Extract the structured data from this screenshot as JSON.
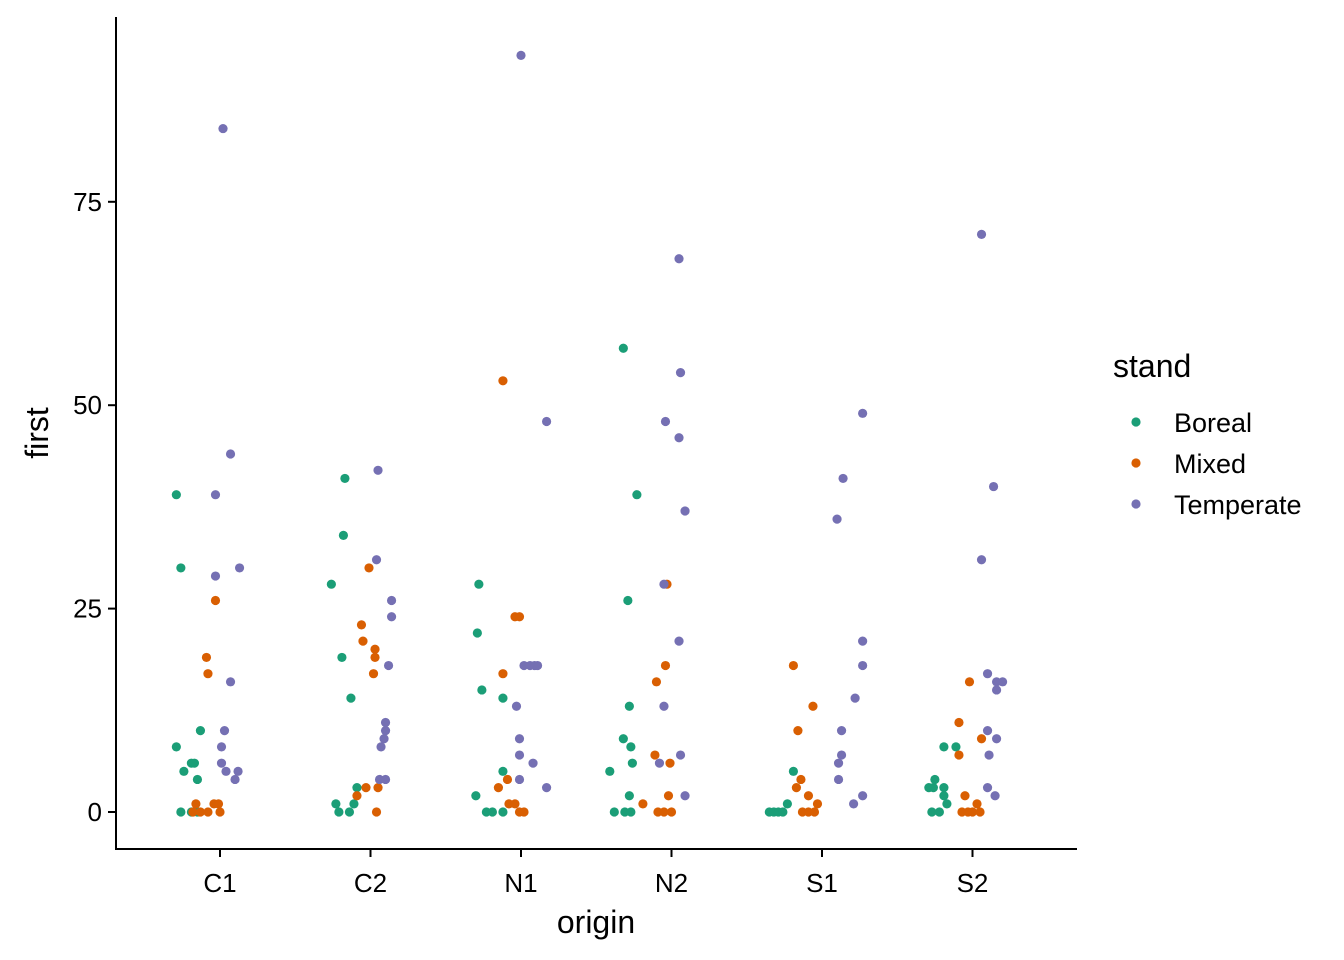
{
  "chart_data": {
    "type": "scatter",
    "title": "",
    "xlabel": "origin",
    "ylabel": "first",
    "categories": [
      "C1",
      "C2",
      "N1",
      "N2",
      "S1",
      "S2"
    ],
    "ylim": [
      -4.5,
      94.5
    ],
    "yticks": [
      0,
      25,
      50,
      75
    ],
    "grid": false,
    "legend": {
      "title": "stand",
      "position": "right"
    },
    "series": [
      {
        "name": "Boreal",
        "color": "#1b9e77",
        "points": [
          {
            "x": "C1",
            "jitter": -0.29,
            "y": 39
          },
          {
            "x": "C1",
            "jitter": -0.26,
            "y": 30
          },
          {
            "x": "C1",
            "jitter": -0.13,
            "y": 10
          },
          {
            "x": "C1",
            "jitter": -0.29,
            "y": 8
          },
          {
            "x": "C1",
            "jitter": -0.19,
            "y": 6
          },
          {
            "x": "C1",
            "jitter": -0.17,
            "y": 6
          },
          {
            "x": "C1",
            "jitter": -0.24,
            "y": 5
          },
          {
            "x": "C1",
            "jitter": -0.15,
            "y": 4
          },
          {
            "x": "C1",
            "jitter": -0.26,
            "y": 0
          },
          {
            "x": "C1",
            "jitter": -0.19,
            "y": 0
          },
          {
            "x": "C1",
            "jitter": -0.15,
            "y": 0
          },
          {
            "x": "C2",
            "jitter": -0.17,
            "y": 41
          },
          {
            "x": "C2",
            "jitter": -0.18,
            "y": 34
          },
          {
            "x": "C2",
            "jitter": -0.26,
            "y": 28
          },
          {
            "x": "C2",
            "jitter": -0.19,
            "y": 19
          },
          {
            "x": "C2",
            "jitter": -0.13,
            "y": 14
          },
          {
            "x": "C2",
            "jitter": -0.09,
            "y": 3
          },
          {
            "x": "C2",
            "jitter": -0.23,
            "y": 1
          },
          {
            "x": "C2",
            "jitter": -0.11,
            "y": 1
          },
          {
            "x": "C2",
            "jitter": -0.21,
            "y": 0
          },
          {
            "x": "C2",
            "jitter": -0.14,
            "y": 0
          },
          {
            "x": "N1",
            "jitter": -0.28,
            "y": 28
          },
          {
            "x": "N1",
            "jitter": -0.29,
            "y": 22
          },
          {
            "x": "N1",
            "jitter": -0.26,
            "y": 15
          },
          {
            "x": "N1",
            "jitter": -0.12,
            "y": 14
          },
          {
            "x": "N1",
            "jitter": -0.12,
            "y": 5
          },
          {
            "x": "N1",
            "jitter": -0.3,
            "y": 2
          },
          {
            "x": "N1",
            "jitter": -0.23,
            "y": 0
          },
          {
            "x": "N1",
            "jitter": -0.19,
            "y": 0
          },
          {
            "x": "N1",
            "jitter": -0.12,
            "y": 0
          },
          {
            "x": "N2",
            "jitter": -0.32,
            "y": 57
          },
          {
            "x": "N2",
            "jitter": -0.23,
            "y": 39
          },
          {
            "x": "N2",
            "jitter": -0.29,
            "y": 26
          },
          {
            "x": "N2",
            "jitter": -0.28,
            "y": 13
          },
          {
            "x": "N2",
            "jitter": -0.32,
            "y": 9
          },
          {
            "x": "N2",
            "jitter": -0.27,
            "y": 8
          },
          {
            "x": "N2",
            "jitter": -0.26,
            "y": 6
          },
          {
            "x": "N2",
            "jitter": -0.41,
            "y": 5
          },
          {
            "x": "N2",
            "jitter": -0.28,
            "y": 2
          },
          {
            "x": "N2",
            "jitter": -0.38,
            "y": 0
          },
          {
            "x": "N2",
            "jitter": -0.31,
            "y": 0
          },
          {
            "x": "N2",
            "jitter": -0.27,
            "y": 0
          },
          {
            "x": "S1",
            "jitter": -0.19,
            "y": 5
          },
          {
            "x": "S1",
            "jitter": -0.23,
            "y": 1
          },
          {
            "x": "S1",
            "jitter": -0.35,
            "y": 0
          },
          {
            "x": "S1",
            "jitter": -0.32,
            "y": 0
          },
          {
            "x": "S1",
            "jitter": -0.29,
            "y": 0
          },
          {
            "x": "S1",
            "jitter": -0.26,
            "y": 0
          },
          {
            "x": "S2",
            "jitter": -0.19,
            "y": 8
          },
          {
            "x": "S2",
            "jitter": -0.11,
            "y": 8
          },
          {
            "x": "S2",
            "jitter": -0.25,
            "y": 4
          },
          {
            "x": "S2",
            "jitter": -0.29,
            "y": 3
          },
          {
            "x": "S2",
            "jitter": -0.26,
            "y": 3
          },
          {
            "x": "S2",
            "jitter": -0.19,
            "y": 3
          },
          {
            "x": "S2",
            "jitter": -0.19,
            "y": 2
          },
          {
            "x": "S2",
            "jitter": -0.17,
            "y": 1
          },
          {
            "x": "S2",
            "jitter": -0.27,
            "y": 0
          },
          {
            "x": "S2",
            "jitter": -0.22,
            "y": 0
          }
        ]
      },
      {
        "name": "Mixed",
        "color": "#d95f02",
        "points": [
          {
            "x": "C1",
            "jitter": -0.03,
            "y": 26
          },
          {
            "x": "C1",
            "jitter": -0.09,
            "y": 19
          },
          {
            "x": "C1",
            "jitter": -0.08,
            "y": 17
          },
          {
            "x": "C1",
            "jitter": -0.16,
            "y": 1
          },
          {
            "x": "C1",
            "jitter": -0.04,
            "y": 1
          },
          {
            "x": "C1",
            "jitter": -0.01,
            "y": 1
          },
          {
            "x": "C1",
            "jitter": -0.18,
            "y": 0
          },
          {
            "x": "C1",
            "jitter": -0.13,
            "y": 0
          },
          {
            "x": "C1",
            "jitter": -0.08,
            "y": 0
          },
          {
            "x": "C1",
            "jitter": 0.0,
            "y": 0
          },
          {
            "x": "C2",
            "jitter": -0.01,
            "y": 30
          },
          {
            "x": "C2",
            "jitter": -0.06,
            "y": 23
          },
          {
            "x": "C2",
            "jitter": -0.05,
            "y": 21
          },
          {
            "x": "C2",
            "jitter": 0.03,
            "y": 20
          },
          {
            "x": "C2",
            "jitter": 0.03,
            "y": 19
          },
          {
            "x": "C2",
            "jitter": 0.02,
            "y": 17
          },
          {
            "x": "C2",
            "jitter": -0.03,
            "y": 3
          },
          {
            "x": "C2",
            "jitter": 0.05,
            "y": 3
          },
          {
            "x": "C2",
            "jitter": -0.09,
            "y": 2
          },
          {
            "x": "C2",
            "jitter": 0.04,
            "y": 0
          },
          {
            "x": "N1",
            "jitter": -0.12,
            "y": 53
          },
          {
            "x": "N1",
            "jitter": -0.04,
            "y": 24
          },
          {
            "x": "N1",
            "jitter": -0.01,
            "y": 24
          },
          {
            "x": "N1",
            "jitter": -0.12,
            "y": 17
          },
          {
            "x": "N1",
            "jitter": -0.09,
            "y": 4
          },
          {
            "x": "N1",
            "jitter": -0.15,
            "y": 3
          },
          {
            "x": "N1",
            "jitter": -0.08,
            "y": 1
          },
          {
            "x": "N1",
            "jitter": -0.04,
            "y": 1
          },
          {
            "x": "N1",
            "jitter": -0.01,
            "y": 0
          },
          {
            "x": "N1",
            "jitter": 0.02,
            "y": 0
          },
          {
            "x": "N2",
            "jitter": -0.03,
            "y": 28
          },
          {
            "x": "N2",
            "jitter": -0.04,
            "y": 18
          },
          {
            "x": "N2",
            "jitter": -0.1,
            "y": 16
          },
          {
            "x": "N2",
            "jitter": -0.11,
            "y": 7
          },
          {
            "x": "N2",
            "jitter": -0.01,
            "y": 6
          },
          {
            "x": "N2",
            "jitter": -0.02,
            "y": 2
          },
          {
            "x": "N2",
            "jitter": -0.19,
            "y": 1
          },
          {
            "x": "N2",
            "jitter": -0.09,
            "y": 0
          },
          {
            "x": "N2",
            "jitter": -0.05,
            "y": 0
          },
          {
            "x": "N2",
            "jitter": 0.0,
            "y": 0
          },
          {
            "x": "S1",
            "jitter": -0.19,
            "y": 18
          },
          {
            "x": "S1",
            "jitter": -0.06,
            "y": 13
          },
          {
            "x": "S1",
            "jitter": -0.16,
            "y": 10
          },
          {
            "x": "S1",
            "jitter": -0.14,
            "y": 4
          },
          {
            "x": "S1",
            "jitter": -0.17,
            "y": 3
          },
          {
            "x": "S1",
            "jitter": -0.09,
            "y": 2
          },
          {
            "x": "S1",
            "jitter": -0.03,
            "y": 1
          },
          {
            "x": "S1",
            "jitter": -0.13,
            "y": 0
          },
          {
            "x": "S1",
            "jitter": -0.09,
            "y": 0
          },
          {
            "x": "S1",
            "jitter": -0.05,
            "y": 0
          },
          {
            "x": "S2",
            "jitter": -0.02,
            "y": 16
          },
          {
            "x": "S2",
            "jitter": -0.09,
            "y": 11
          },
          {
            "x": "S2",
            "jitter": 0.06,
            "y": 9
          },
          {
            "x": "S2",
            "jitter": -0.09,
            "y": 7
          },
          {
            "x": "S2",
            "jitter": -0.05,
            "y": 2
          },
          {
            "x": "S2",
            "jitter": 0.03,
            "y": 1
          },
          {
            "x": "S2",
            "jitter": -0.07,
            "y": 0
          },
          {
            "x": "S2",
            "jitter": -0.03,
            "y": 0
          },
          {
            "x": "S2",
            "jitter": 0.0,
            "y": 0
          },
          {
            "x": "S2",
            "jitter": 0.05,
            "y": 0
          }
        ]
      },
      {
        "name": "Temperate",
        "color": "#7570b3",
        "points": [
          {
            "x": "C1",
            "jitter": 0.02,
            "y": 84
          },
          {
            "x": "C1",
            "jitter": 0.07,
            "y": 44
          },
          {
            "x": "C1",
            "jitter": -0.03,
            "y": 39
          },
          {
            "x": "C1",
            "jitter": 0.13,
            "y": 30
          },
          {
            "x": "C1",
            "jitter": -0.03,
            "y": 29
          },
          {
            "x": "C1",
            "jitter": 0.07,
            "y": 16
          },
          {
            "x": "C1",
            "jitter": 0.03,
            "y": 10
          },
          {
            "x": "C1",
            "jitter": 0.01,
            "y": 8
          },
          {
            "x": "C1",
            "jitter": 0.01,
            "y": 6
          },
          {
            "x": "C1",
            "jitter": 0.04,
            "y": 5
          },
          {
            "x": "C1",
            "jitter": 0.12,
            "y": 5
          },
          {
            "x": "C1",
            "jitter": 0.1,
            "y": 4
          },
          {
            "x": "C2",
            "jitter": 0.05,
            "y": 42
          },
          {
            "x": "C2",
            "jitter": 0.04,
            "y": 31
          },
          {
            "x": "C2",
            "jitter": 0.14,
            "y": 26
          },
          {
            "x": "C2",
            "jitter": 0.14,
            "y": 24
          },
          {
            "x": "C2",
            "jitter": 0.12,
            "y": 18
          },
          {
            "x": "C2",
            "jitter": 0.1,
            "y": 11
          },
          {
            "x": "C2",
            "jitter": 0.1,
            "y": 10
          },
          {
            "x": "C2",
            "jitter": 0.09,
            "y": 9
          },
          {
            "x": "C2",
            "jitter": 0.07,
            "y": 8
          },
          {
            "x": "C2",
            "jitter": 0.06,
            "y": 4
          },
          {
            "x": "C2",
            "jitter": 0.1,
            "y": 4
          },
          {
            "x": "N1",
            "jitter": 0.0,
            "y": 93
          },
          {
            "x": "N1",
            "jitter": 0.17,
            "y": 48
          },
          {
            "x": "N1",
            "jitter": 0.02,
            "y": 18
          },
          {
            "x": "N1",
            "jitter": 0.06,
            "y": 18
          },
          {
            "x": "N1",
            "jitter": 0.09,
            "y": 18
          },
          {
            "x": "N1",
            "jitter": 0.11,
            "y": 18
          },
          {
            "x": "N1",
            "jitter": -0.03,
            "y": 13
          },
          {
            "x": "N1",
            "jitter": -0.01,
            "y": 9
          },
          {
            "x": "N1",
            "jitter": -0.01,
            "y": 7
          },
          {
            "x": "N1",
            "jitter": 0.08,
            "y": 6
          },
          {
            "x": "N1",
            "jitter": -0.01,
            "y": 4
          },
          {
            "x": "N1",
            "jitter": 0.17,
            "y": 3
          },
          {
            "x": "N2",
            "jitter": 0.05,
            "y": 68
          },
          {
            "x": "N2",
            "jitter": 0.06,
            "y": 54
          },
          {
            "x": "N2",
            "jitter": -0.04,
            "y": 48
          },
          {
            "x": "N2",
            "jitter": 0.05,
            "y": 46
          },
          {
            "x": "N2",
            "jitter": 0.09,
            "y": 37
          },
          {
            "x": "N2",
            "jitter": -0.05,
            "y": 28
          },
          {
            "x": "N2",
            "jitter": 0.05,
            "y": 21
          },
          {
            "x": "N2",
            "jitter": -0.05,
            "y": 13
          },
          {
            "x": "N2",
            "jitter": 0.06,
            "y": 7
          },
          {
            "x": "N2",
            "jitter": -0.08,
            "y": 6
          },
          {
            "x": "N2",
            "jitter": 0.09,
            "y": 2
          },
          {
            "x": "S1",
            "jitter": 0.27,
            "y": 49
          },
          {
            "x": "S1",
            "jitter": 0.14,
            "y": 41
          },
          {
            "x": "S1",
            "jitter": 0.1,
            "y": 36
          },
          {
            "x": "S1",
            "jitter": 0.27,
            "y": 21
          },
          {
            "x": "S1",
            "jitter": 0.27,
            "y": 18
          },
          {
            "x": "S1",
            "jitter": 0.22,
            "y": 14
          },
          {
            "x": "S1",
            "jitter": 0.13,
            "y": 10
          },
          {
            "x": "S1",
            "jitter": 0.13,
            "y": 7
          },
          {
            "x": "S1",
            "jitter": 0.11,
            "y": 6
          },
          {
            "x": "S1",
            "jitter": 0.11,
            "y": 4
          },
          {
            "x": "S1",
            "jitter": 0.27,
            "y": 2
          },
          {
            "x": "S1",
            "jitter": 0.21,
            "y": 1
          },
          {
            "x": "S2",
            "jitter": 0.06,
            "y": 71
          },
          {
            "x": "S2",
            "jitter": 0.14,
            "y": 40
          },
          {
            "x": "S2",
            "jitter": 0.06,
            "y": 31
          },
          {
            "x": "S2",
            "jitter": 0.1,
            "y": 17
          },
          {
            "x": "S2",
            "jitter": 0.16,
            "y": 16
          },
          {
            "x": "S2",
            "jitter": 0.2,
            "y": 16
          },
          {
            "x": "S2",
            "jitter": 0.16,
            "y": 15
          },
          {
            "x": "S2",
            "jitter": 0.1,
            "y": 10
          },
          {
            "x": "S2",
            "jitter": 0.16,
            "y": 9
          },
          {
            "x": "S2",
            "jitter": 0.11,
            "y": 7
          },
          {
            "x": "S2",
            "jitter": 0.1,
            "y": 3
          },
          {
            "x": "S2",
            "jitter": 0.15,
            "y": 2
          }
        ]
      }
    ]
  }
}
